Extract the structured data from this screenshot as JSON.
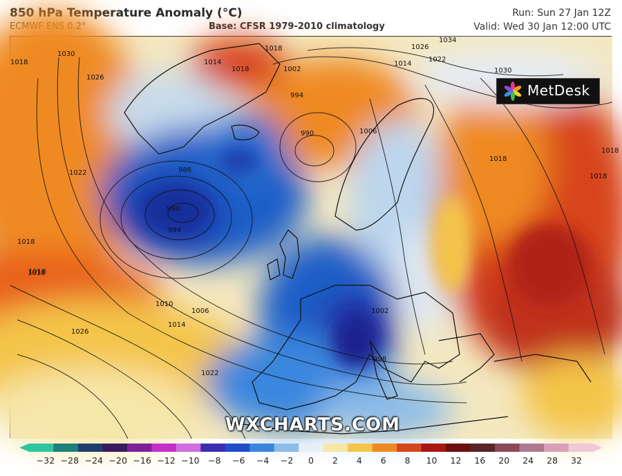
{
  "title": "850 hPa Temperature Anomaly (°C)",
  "model": "ECMWF ENS 0.2°",
  "base": "Base: CFSR 1979-2010 climatology",
  "run": "Run: Sun 27 Jan 12Z",
  "valid": "Valid: Wed 30 Jan 12:00 UTC",
  "logo": "MetDesk",
  "watermark": "WXCHARTS.COM",
  "colorbar": {
    "ticks": [
      "−32",
      "−28",
      "−24",
      "−20",
      "−16",
      "−12",
      "−10",
      "−8",
      "−6",
      "−4",
      "−2",
      "0",
      "2",
      "4",
      "6",
      "8",
      "10",
      "12",
      "16",
      "20",
      "24",
      "28",
      "32"
    ],
    "colors": [
      "#2fc5a0",
      "#1f7f7a",
      "#1e3f6e",
      "#3a1a5e",
      "#7d1f9a",
      "#c42fc8",
      "#d06ee0",
      "#3b2fb0",
      "#1e4fc8",
      "#3a86de",
      "#8cbce8",
      "#e8f0f6",
      "#f6e6a8",
      "#f4c54a",
      "#ef8a22",
      "#d8451c",
      "#a81810",
      "#6e0e0e",
      "#5a2424",
      "#8a4a5a",
      "#b07890",
      "#d8a0b8",
      "#f0c8d8"
    ]
  },
  "contour_labels": [
    "1030",
    "1026",
    "1022",
    "1018",
    "1014",
    "1018",
    "1018",
    "1002",
    "994",
    "990",
    "986",
    "990",
    "994",
    "1006",
    "1026",
    "1034",
    "1030",
    "1014",
    "1022",
    "1018",
    "1018",
    "1018",
    "1010",
    "1006",
    "1014",
    "1026",
    "1022",
    "1002",
    "998",
    "1018",
    "1018",
    "1018"
  ]
}
